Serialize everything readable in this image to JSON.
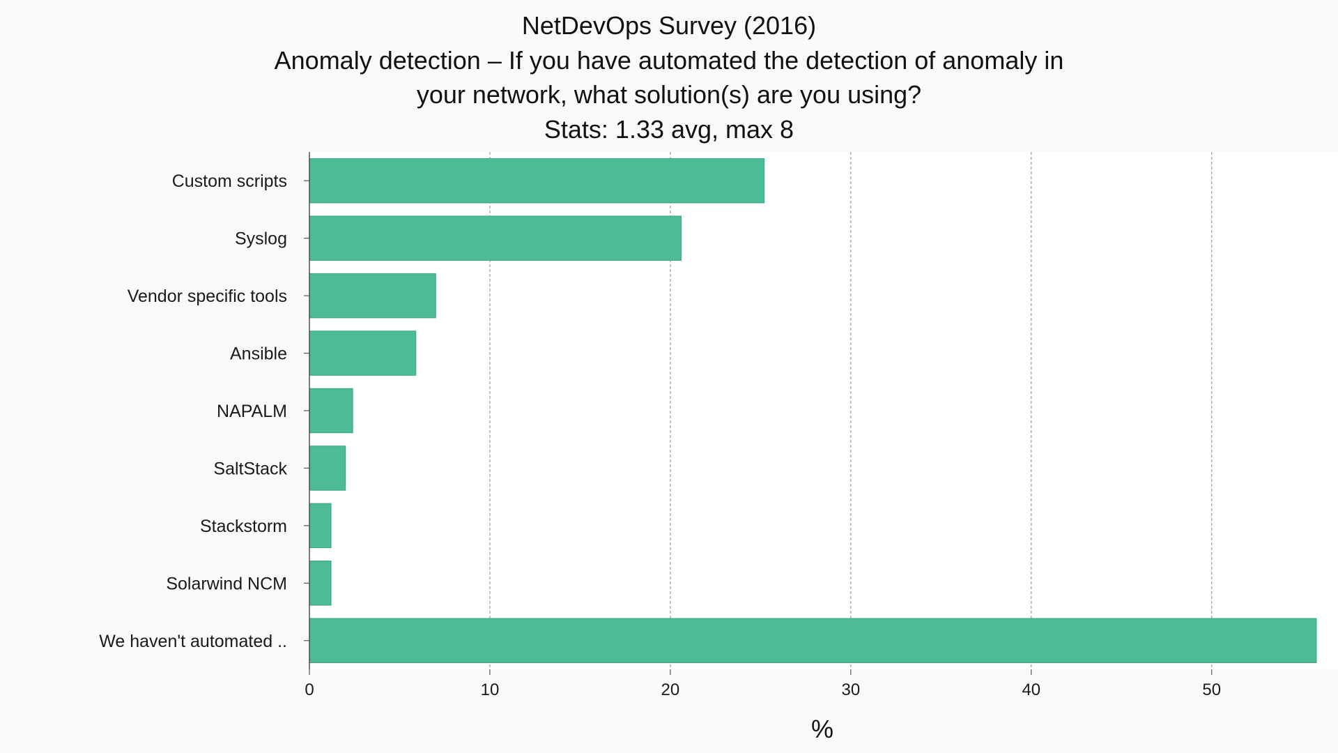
{
  "chart_data": {
    "type": "bar",
    "orientation": "horizontal",
    "title": "NetDevOps Survey (2016)",
    "subtitle_lines": [
      "Anomaly detection – If you have automated the detection of anomaly in",
      "your network, what solution(s) are you using?",
      "Stats: 1.33 avg, max 8"
    ],
    "categories": [
      "Custom scripts",
      "Syslog",
      "Vendor specific tools",
      "Ansible",
      "NAPALM",
      "SaltStack",
      "Stackstorm",
      "Solarwind NCM",
      "We haven't automated .."
    ],
    "values": [
      25.2,
      20.6,
      7.0,
      5.9,
      2.4,
      2.0,
      1.2,
      1.2,
      55.8
    ],
    "xlabel": "%",
    "ylabel": "",
    "xlim": [
      0,
      57
    ],
    "xticks": [
      0,
      10,
      20,
      30,
      40,
      50
    ],
    "grid": true,
    "legend": "none",
    "colors": {
      "bar": "#4dbb98",
      "bar_edge": "#3aa582",
      "plot_bg": "#ffffff",
      "page_bg": "#f9f9f9",
      "grid": "#9a9a9a"
    }
  }
}
